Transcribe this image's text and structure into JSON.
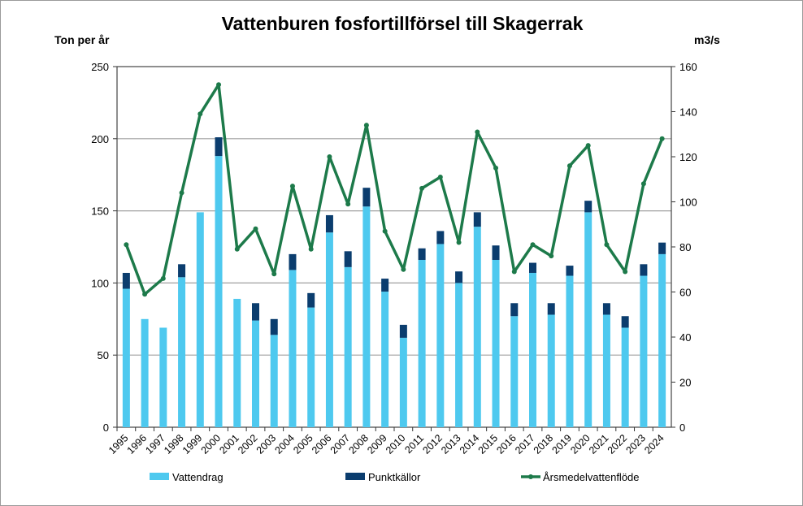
{
  "chart_data": {
    "type": "bar",
    "title": "Vattenburen fosfortillförsel till Skagerrak",
    "ylabel": "Ton per år",
    "y2label": "m3/s",
    "ylim": [
      0,
      250
    ],
    "y2lim": [
      0,
      160
    ],
    "yticks": [
      "0",
      "50",
      "100",
      "150",
      "200",
      "250"
    ],
    "y2ticks": [
      "0",
      "20",
      "40",
      "60",
      "80",
      "100",
      "120",
      "140",
      "160"
    ],
    "grid": true,
    "legend_position": "bottom",
    "categories": [
      "1995",
      "1996",
      "1997",
      "1998",
      "1999",
      "2000",
      "2001",
      "2002",
      "2003",
      "2004",
      "2005",
      "2006",
      "2007",
      "2008",
      "2009",
      "2010",
      "2011",
      "2012",
      "2013",
      "2014",
      "2015",
      "2016",
      "2017",
      "2018",
      "2019",
      "2020",
      "2021",
      "2022",
      "2023",
      "2024"
    ],
    "series": [
      {
        "name": "Vattendrag",
        "type": "stacked-bar",
        "axis": "left",
        "color": "#4ec9ef",
        "values": [
          96,
          75,
          69,
          104,
          149,
          188,
          89,
          74,
          64,
          109,
          83,
          135,
          111,
          153,
          94,
          62,
          116,
          127,
          100,
          139,
          116,
          77,
          107,
          78,
          105,
          149,
          78,
          69,
          105,
          120
        ]
      },
      {
        "name": "Punktkällor",
        "type": "stacked-bar",
        "axis": "left",
        "color": "#0b3d6e",
        "values": [
          11,
          0,
          0,
          9,
          0,
          13,
          0,
          12,
          11,
          11,
          10,
          12,
          11,
          13,
          9,
          9,
          8,
          9,
          8,
          10,
          10,
          9,
          7,
          8,
          7,
          8,
          8,
          8,
          8,
          8
        ]
      },
      {
        "name": "Årsmedelvattenflöde",
        "type": "line",
        "axis": "right",
        "color": "#1d7a4a",
        "values": [
          81,
          59,
          66,
          104,
          139,
          152,
          79,
          88,
          68,
          107,
          79,
          120,
          99,
          134,
          87,
          70,
          106,
          111,
          82,
          131,
          115,
          69,
          81,
          76,
          116,
          125,
          81,
          69,
          108,
          128
        ]
      }
    ]
  }
}
